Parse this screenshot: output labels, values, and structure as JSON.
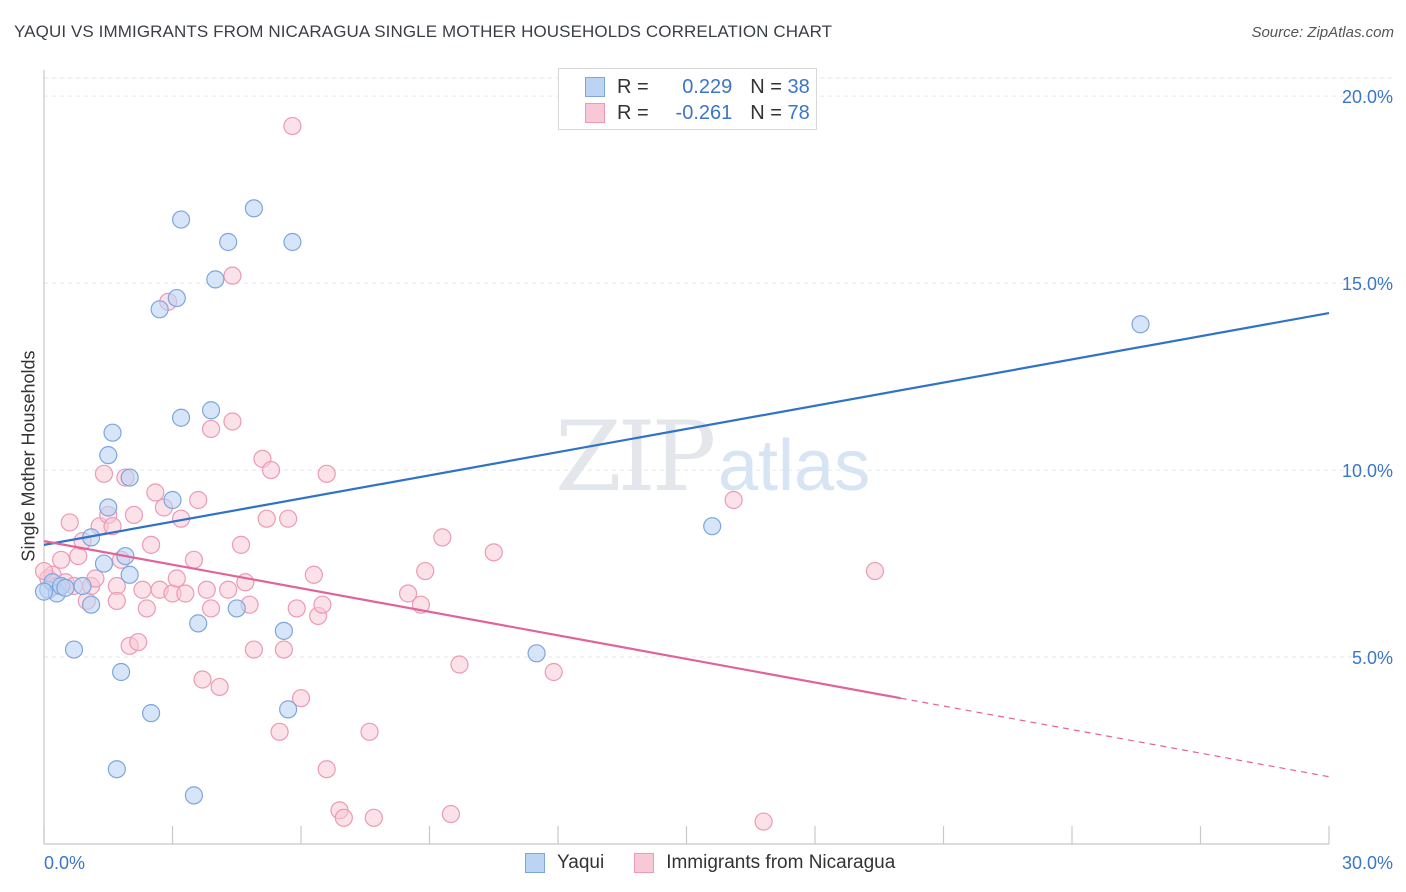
{
  "title": "YAQUI VS IMMIGRANTS FROM NICARAGUA SINGLE MOTHER HOUSEHOLDS CORRELATION CHART",
  "source": "Source: ZipAtlas.com",
  "watermark": {
    "zip": "ZIP",
    "atlas": "atlas"
  },
  "legend": {
    "r_label": "R =",
    "n_label": "N =",
    "yaqui": {
      "r": "0.229",
      "n": "38"
    },
    "nicaragua": {
      "r": "-0.261",
      "n": "78"
    }
  },
  "colors": {
    "blue_fill": "#bcd4f3",
    "blue_stroke": "#7ea6dc",
    "blue_line": "#2f72c8",
    "pink_fill": "#f8c8d6",
    "pink_stroke": "#ec9ab5",
    "pink_line": "#e0649a",
    "tick_label": "#3b76c8"
  },
  "chart_data": {
    "type": "scatter",
    "title": "YAQUI VS IMMIGRANTS FROM NICARAGUA SINGLE MOTHER HOUSEHOLDS CORRELATION CHART",
    "xlabel": "",
    "ylabel": "Single Mother Households",
    "xlim": [
      0,
      30
    ],
    "ylim": [
      0,
      20.7
    ],
    "x_tick_labels": [
      "0.0%",
      "30.0%"
    ],
    "y_ticks": [
      5,
      10,
      15,
      20
    ],
    "y_tick_labels": [
      "5.0%",
      "10.0%",
      "15.0%",
      "20.0%"
    ],
    "grid": "horizontal dashed",
    "legend_position": "top-center",
    "series": [
      {
        "name": "Yaqui",
        "color": "#bcd4f3",
        "points": [
          [
            0.1,
            6.8
          ],
          [
            0.2,
            7.0
          ],
          [
            0.3,
            6.7
          ],
          [
            0.4,
            6.9
          ],
          [
            0.5,
            6.85
          ],
          [
            0.7,
            5.2
          ],
          [
            0.9,
            6.9
          ],
          [
            1.1,
            8.2
          ],
          [
            1.1,
            6.4
          ],
          [
            1.4,
            7.5
          ],
          [
            1.5,
            9.0
          ],
          [
            1.5,
            10.4
          ],
          [
            1.6,
            11.0
          ],
          [
            1.8,
            4.6
          ],
          [
            1.9,
            7.7
          ],
          [
            1.7,
            2.0
          ],
          [
            2.0,
            9.8
          ],
          [
            2.0,
            7.2
          ],
          [
            2.5,
            3.5
          ],
          [
            2.7,
            14.3
          ],
          [
            3.0,
            9.2
          ],
          [
            3.1,
            14.6
          ],
          [
            3.2,
            16.7
          ],
          [
            3.2,
            11.4
          ],
          [
            3.5,
            1.3
          ],
          [
            3.6,
            5.9
          ],
          [
            3.9,
            11.6
          ],
          [
            4.0,
            15.1
          ],
          [
            4.3,
            16.1
          ],
          [
            4.5,
            6.3
          ],
          [
            4.9,
            17.0
          ],
          [
            5.6,
            5.7
          ],
          [
            5.7,
            3.6
          ],
          [
            5.8,
            16.1
          ],
          [
            11.5,
            5.1
          ],
          [
            15.6,
            8.5
          ],
          [
            25.6,
            13.9
          ],
          [
            0.0,
            6.75
          ]
        ]
      },
      {
        "name": "Immigrants from Nicaragua",
        "color": "#f8c8d6",
        "points": [
          [
            0.1,
            7.1
          ],
          [
            0.2,
            7.2
          ],
          [
            0.3,
            6.9
          ],
          [
            0.4,
            7.6
          ],
          [
            0.5,
            7.0
          ],
          [
            0.6,
            8.6
          ],
          [
            0.7,
            6.9
          ],
          [
            0.8,
            7.7
          ],
          [
            0.9,
            8.1
          ],
          [
            1.0,
            6.5
          ],
          [
            1.1,
            6.9
          ],
          [
            1.2,
            7.1
          ],
          [
            1.3,
            8.5
          ],
          [
            1.4,
            9.9
          ],
          [
            1.5,
            8.8
          ],
          [
            1.6,
            8.5
          ],
          [
            1.7,
            6.9
          ],
          [
            1.7,
            6.5
          ],
          [
            1.8,
            7.6
          ],
          [
            1.9,
            9.8
          ],
          [
            2.0,
            5.3
          ],
          [
            2.1,
            8.8
          ],
          [
            2.2,
            5.4
          ],
          [
            2.3,
            6.8
          ],
          [
            2.4,
            6.3
          ],
          [
            2.5,
            8.0
          ],
          [
            2.6,
            9.4
          ],
          [
            2.7,
            6.8
          ],
          [
            2.8,
            9.0
          ],
          [
            2.9,
            14.5
          ],
          [
            3.0,
            6.7
          ],
          [
            3.1,
            7.1
          ],
          [
            3.2,
            8.7
          ],
          [
            3.3,
            6.7
          ],
          [
            3.5,
            7.6
          ],
          [
            3.6,
            9.2
          ],
          [
            3.7,
            4.4
          ],
          [
            3.8,
            6.8
          ],
          [
            3.9,
            11.1
          ],
          [
            3.9,
            6.3
          ],
          [
            4.1,
            4.2
          ],
          [
            4.3,
            6.8
          ],
          [
            4.4,
            11.3
          ],
          [
            4.4,
            15.2
          ],
          [
            4.6,
            8.0
          ],
          [
            4.7,
            7.0
          ],
          [
            4.8,
            6.4
          ],
          [
            4.9,
            5.2
          ],
          [
            5.1,
            10.3
          ],
          [
            5.2,
            8.7
          ],
          [
            5.3,
            10.0
          ],
          [
            5.5,
            3.0
          ],
          [
            5.6,
            5.2
          ],
          [
            5.7,
            8.7
          ],
          [
            5.8,
            19.2
          ],
          [
            5.9,
            6.3
          ],
          [
            6.0,
            3.9
          ],
          [
            6.3,
            7.2
          ],
          [
            6.4,
            6.1
          ],
          [
            6.5,
            6.4
          ],
          [
            6.6,
            9.9
          ],
          [
            6.6,
            2.0
          ],
          [
            6.9,
            0.9
          ],
          [
            7.0,
            0.7
          ],
          [
            7.6,
            3.0
          ],
          [
            7.7,
            0.7
          ],
          [
            8.5,
            6.7
          ],
          [
            8.8,
            6.4
          ],
          [
            8.9,
            7.3
          ],
          [
            9.3,
            8.2
          ],
          [
            9.5,
            0.8
          ],
          [
            9.7,
            4.8
          ],
          [
            10.5,
            7.8
          ],
          [
            11.9,
            4.6
          ],
          [
            16.1,
            9.2
          ],
          [
            16.8,
            0.6
          ],
          [
            19.4,
            7.3
          ],
          [
            0.0,
            7.3
          ]
        ]
      }
    ],
    "trendlines": [
      {
        "series": "Yaqui",
        "from": [
          0,
          8.0
        ],
        "to": [
          30,
          14.2
        ],
        "style": "solid"
      },
      {
        "series": "Immigrants from Nicaragua",
        "from": [
          0,
          8.1
        ],
        "to": [
          20,
          3.9
        ],
        "style": "solid"
      },
      {
        "series": "Immigrants from Nicaragua",
        "from": [
          20,
          3.9
        ],
        "to": [
          30,
          1.8
        ],
        "style": "dashed"
      }
    ]
  }
}
